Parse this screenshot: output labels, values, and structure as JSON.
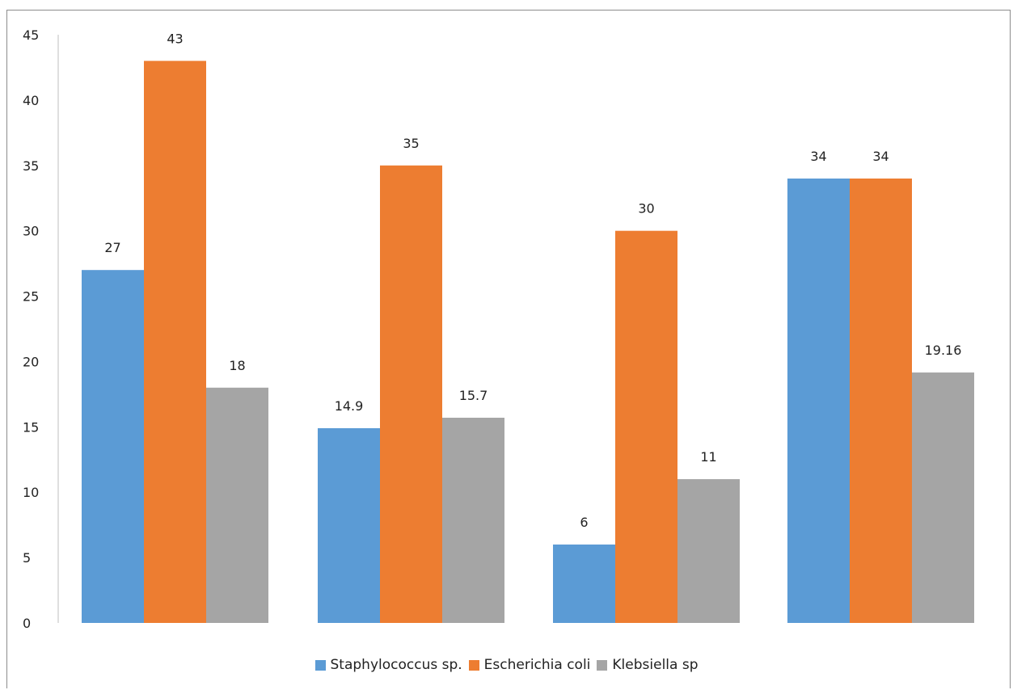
{
  "chart_data": {
    "type": "bar",
    "categories": [
      "",
      "",
      "",
      ""
    ],
    "series": [
      {
        "name": "Staphylococcus sp.",
        "color": "#5b9bd5",
        "values": [
          27,
          14.9,
          6,
          34
        ],
        "labels": [
          "27",
          "14.9",
          "6",
          "34"
        ]
      },
      {
        "name": "Escherichia coli",
        "color": "#ed7d31",
        "values": [
          43,
          35,
          30,
          34
        ],
        "labels": [
          "43",
          "35",
          "30",
          "34"
        ]
      },
      {
        "name": "Klebsiella sp",
        "color": "#a5a5a5",
        "values": [
          18,
          15.7,
          11,
          19.16
        ],
        "labels": [
          "18",
          "15.7",
          "11",
          "19.16"
        ]
      }
    ],
    "ylim": [
      0,
      45
    ],
    "yticks": [
      "0",
      "5",
      "10",
      "15",
      "20",
      "25",
      "30",
      "35",
      "40",
      "45"
    ],
    "grid": false,
    "legend_position": "bottom",
    "data_labels": true
  }
}
